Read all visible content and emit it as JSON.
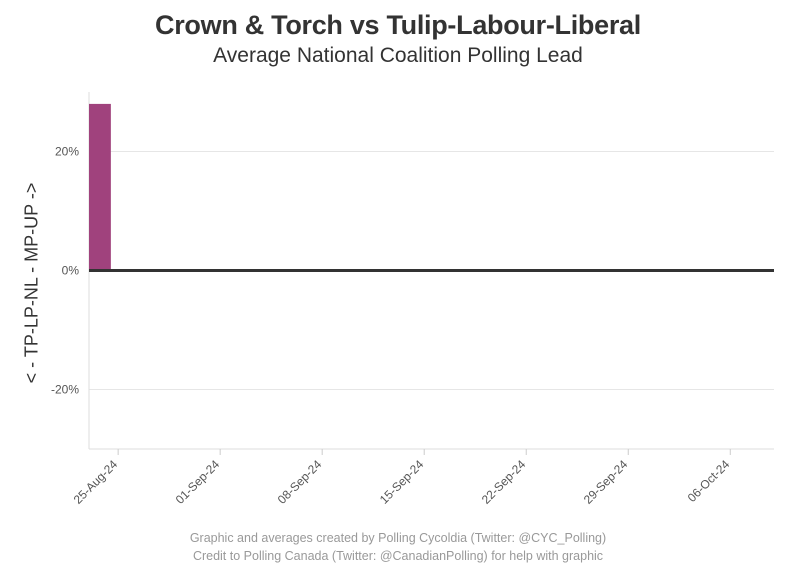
{
  "title": "Crown & Torch vs Tulip-Labour-Liberal",
  "subtitle": "Average National Coalition Polling Lead",
  "caption_line1": "Graphic and averages created by Polling Cycoldia (Twitter: @CYC_Polling)",
  "caption_line2": "Credit to Polling Canada (Twitter: @CanadianPolling) for help with graphic",
  "chart_data": {
    "type": "bar",
    "title": "Crown & Torch vs Tulip-Labour-Liberal",
    "subtitle": "Average National Coalition Polling Lead",
    "xlabel": "",
    "ylabel": "< - TP-LP-NL - MP-UP ->",
    "x_tick_labels": [
      "25-Aug-24",
      "01-Sep-24",
      "08-Sep-24",
      "15-Sep-24",
      "22-Sep-24",
      "29-Sep-24",
      "06-Oct-24"
    ],
    "x_range": [
      "2024-08-23",
      "2024-10-09"
    ],
    "ylim": [
      -30,
      30
    ],
    "y_ticks": [
      -20,
      0,
      20
    ],
    "y_tick_labels": [
      "-20%",
      "0%",
      "20%"
    ],
    "grid": true,
    "bars": [
      {
        "start": "2024-08-23",
        "end": "2024-08-24.5",
        "value": 28,
        "color": "#A0427D"
      }
    ],
    "zero_line_color": "#333333"
  }
}
